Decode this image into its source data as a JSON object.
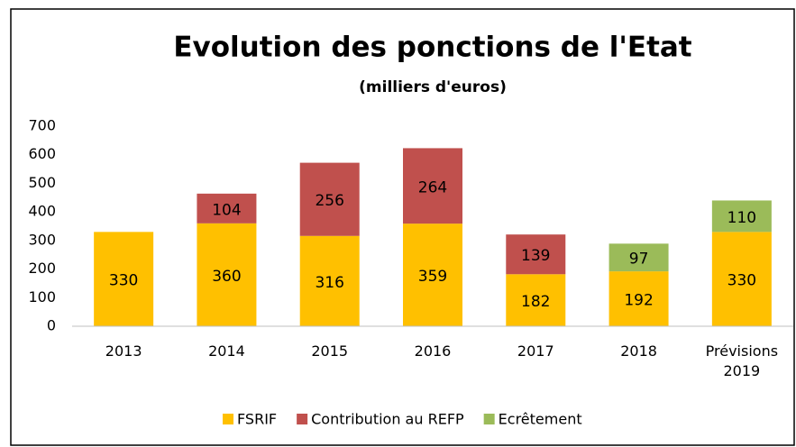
{
  "chart_data": {
    "type": "stacked_bar",
    "title": "Evolution des ponctions de l'Etat",
    "subtitle": "(milliers d'euros)",
    "categories": [
      "2013",
      "2014",
      "2015",
      "2016",
      "2017",
      "2018",
      "Prévisions 2019"
    ],
    "series": [
      {
        "name": "FSRIF",
        "color": "#ffc000",
        "values": [
          330,
          360,
          316,
          359,
          182,
          192,
          330
        ]
      },
      {
        "name": "Contribution au REFP",
        "color": "#c0504d",
        "values": [
          null,
          104,
          256,
          264,
          139,
          null,
          null
        ]
      },
      {
        "name": "Ecrêtement",
        "color": "#9bbb59",
        "values": [
          null,
          null,
          null,
          null,
          null,
          97,
          110
        ]
      }
    ],
    "ylim": [
      0,
      700
    ],
    "yticks": [
      0,
      100,
      200,
      300,
      400,
      500,
      600,
      700
    ],
    "grid": false,
    "legend": "bottom"
  }
}
